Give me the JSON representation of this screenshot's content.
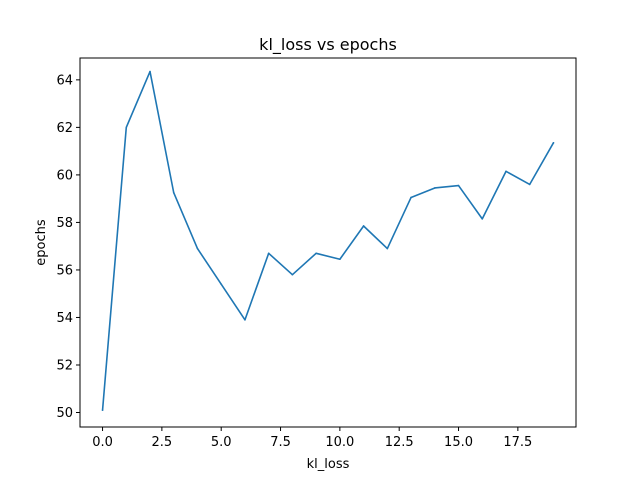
{
  "chart_data": {
    "type": "line",
    "title": "kl_loss vs epochs",
    "xlabel": "kl_loss",
    "ylabel": "epochs",
    "x": [
      0,
      1,
      2,
      3,
      4,
      5,
      6,
      7,
      8,
      9,
      10,
      11,
      12,
      13,
      14,
      15,
      16,
      17,
      18,
      19
    ],
    "series": [
      {
        "values": [
          50.1,
          62.0,
          64.35,
          59.25,
          56.9,
          55.4,
          53.9,
          56.7,
          55.8,
          56.7,
          56.45,
          57.85,
          56.9,
          59.05,
          59.45,
          59.55,
          58.15,
          60.15,
          59.6,
          61.35
        ],
        "color": "#1f77b4"
      }
    ],
    "xlim": [
      -0.95,
      19.95
    ],
    "ylim": [
      49.39,
      64.92
    ],
    "xticks": [
      0,
      2.5,
      5,
      7.5,
      10,
      12.5,
      15,
      17.5
    ],
    "xtick_labels": [
      "0.0",
      "2.5",
      "5.0",
      "7.5",
      "10.0",
      "12.5",
      "15.0",
      "17.5"
    ],
    "yticks": [
      50,
      52,
      54,
      56,
      58,
      60,
      62,
      64
    ],
    "ytick_labels": [
      "50",
      "52",
      "54",
      "56",
      "58",
      "60",
      "62",
      "64"
    ],
    "grid": false,
    "legend": "none"
  }
}
